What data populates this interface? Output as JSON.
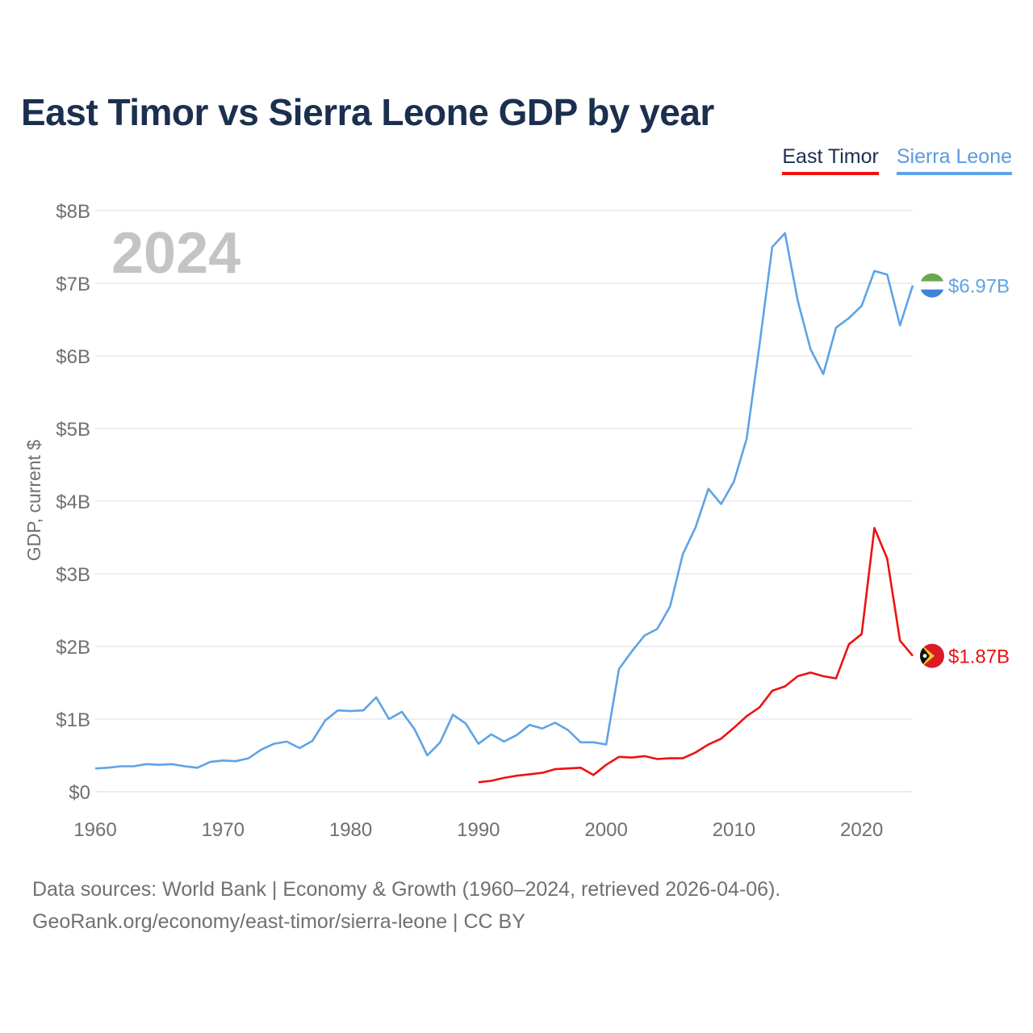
{
  "title": "East Timor vs Sierra Leone GDP by year",
  "legend": {
    "east_timor": "East Timor",
    "sierra_leone": "Sierra Leone"
  },
  "footer": {
    "line1": "Data sources: World Bank | Economy & Growth (1960–2024, retrieved 2026-04-06).",
    "line2": "GeoRank.org/economy/east-timor/sierra-leone | CC BY"
  },
  "chart_data": {
    "type": "line",
    "title": "East Timor vs Sierra Leone GDP by year",
    "xlabel": "",
    "ylabel": "GDP, current $",
    "year_watermark": "2024",
    "xlim": [
      1960,
      2024
    ],
    "ylim": [
      0,
      8
    ],
    "y_unit": "billion US$",
    "x_ticks": [
      1960,
      1970,
      1980,
      1990,
      2000,
      2010,
      2020
    ],
    "x_tick_labels": [
      "1960",
      "1970",
      "1980",
      "1990",
      "2000",
      "2010",
      "2020"
    ],
    "y_ticks": [
      0,
      1,
      2,
      3,
      4,
      5,
      6,
      7,
      8
    ],
    "y_tick_labels": [
      "$0",
      "$1B",
      "$2B",
      "$3B",
      "$4B",
      "$5B",
      "$6B",
      "$7B",
      "$8B"
    ],
    "grid": true,
    "series": [
      {
        "name": "Sierra Leone",
        "color": "#5ea3e6",
        "end_label": "$6.97B",
        "x": [
          1960,
          1961,
          1962,
          1963,
          1964,
          1965,
          1966,
          1967,
          1968,
          1969,
          1970,
          1971,
          1972,
          1973,
          1974,
          1975,
          1976,
          1977,
          1978,
          1979,
          1980,
          1981,
          1982,
          1983,
          1984,
          1985,
          1986,
          1987,
          1988,
          1989,
          1990,
          1991,
          1992,
          1993,
          1994,
          1995,
          1996,
          1997,
          1998,
          1999,
          2000,
          2001,
          2002,
          2003,
          2004,
          2005,
          2006,
          2007,
          2008,
          2009,
          2010,
          2011,
          2012,
          2013,
          2014,
          2015,
          2016,
          2017,
          2018,
          2019,
          2020,
          2021,
          2022,
          2023,
          2024
        ],
        "values": [
          0.32,
          0.33,
          0.35,
          0.35,
          0.38,
          0.37,
          0.38,
          0.35,
          0.33,
          0.41,
          0.43,
          0.42,
          0.46,
          0.58,
          0.66,
          0.69,
          0.6,
          0.7,
          0.98,
          1.12,
          1.11,
          1.12,
          1.3,
          1.0,
          1.1,
          0.86,
          0.5,
          0.68,
          1.06,
          0.94,
          0.66,
          0.79,
          0.69,
          0.78,
          0.92,
          0.87,
          0.95,
          0.85,
          0.68,
          0.68,
          0.65,
          1.69,
          1.93,
          2.15,
          2.24,
          2.55,
          3.27,
          3.64,
          4.17,
          3.96,
          4.27,
          4.86,
          6.15,
          7.5,
          7.69,
          6.76,
          6.09,
          5.75,
          6.39,
          6.52,
          6.69,
          7.17,
          7.12,
          6.42,
          6.97
        ]
      },
      {
        "name": "East Timor",
        "color": "#ee1111",
        "end_label": "$1.87B",
        "x": [
          1990,
          1991,
          1992,
          1993,
          1994,
          1995,
          1996,
          1997,
          1998,
          1999,
          2000,
          2001,
          2002,
          2003,
          2004,
          2005,
          2006,
          2007,
          2008,
          2009,
          2010,
          2011,
          2012,
          2013,
          2014,
          2015,
          2016,
          2017,
          2018,
          2019,
          2020,
          2021,
          2022,
          2023,
          2024
        ],
        "values": [
          0.13,
          0.15,
          0.19,
          0.22,
          0.24,
          0.26,
          0.31,
          0.32,
          0.33,
          0.23,
          0.37,
          0.48,
          0.47,
          0.49,
          0.45,
          0.46,
          0.46,
          0.54,
          0.65,
          0.73,
          0.88,
          1.04,
          1.16,
          1.39,
          1.45,
          1.59,
          1.64,
          1.59,
          1.56,
          2.03,
          2.17,
          3.63,
          3.21,
          2.08,
          1.87
        ]
      }
    ]
  },
  "colors": {
    "title": "#1b2f4f",
    "axis_text": "#707070",
    "grid": "#e4e4e4",
    "watermark": "#c4c4c4"
  },
  "flags": {
    "sierra_leone": "sierra-leone-flag-icon",
    "east_timor": "east-timor-flag-icon"
  }
}
